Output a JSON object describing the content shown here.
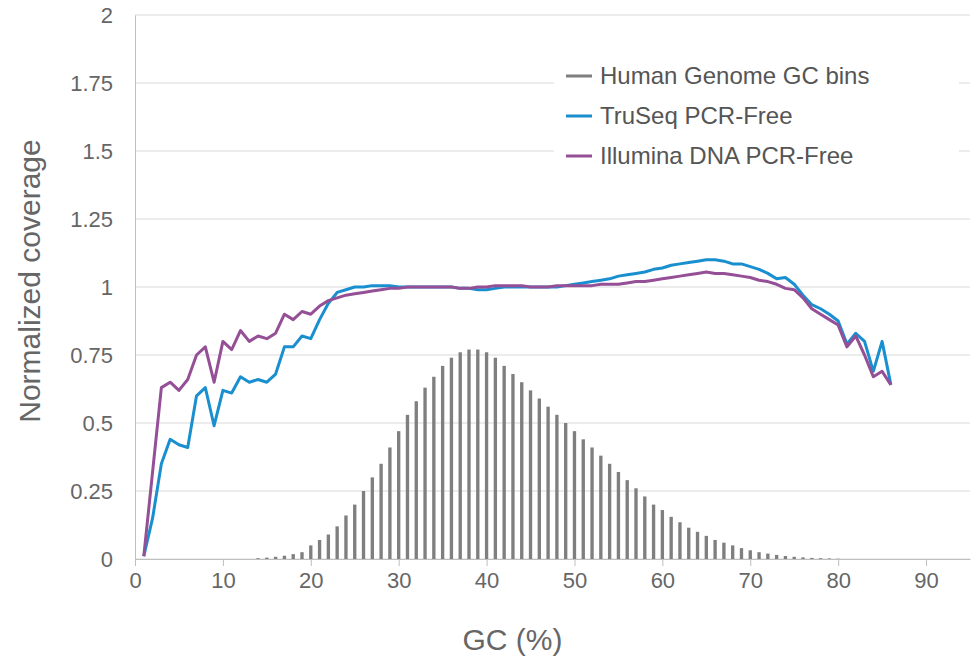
{
  "chart_data": {
    "type": "line",
    "xlabel": "GC (%)",
    "ylabel": "Normalized coverage",
    "xlim": [
      0,
      95
    ],
    "ylim": [
      0,
      2
    ],
    "xticks": [
      0,
      10,
      20,
      30,
      40,
      50,
      60,
      70,
      80,
      90
    ],
    "yticks": [
      0,
      0.25,
      0.5,
      0.75,
      1,
      1.25,
      1.5,
      1.75,
      2
    ],
    "grid": true,
    "legend": "top-right",
    "series": [
      {
        "name": "Human Genome GC bins",
        "type": "bar",
        "color": "#7f7f7f",
        "x": [
          1,
          2,
          3,
          4,
          5,
          6,
          7,
          8,
          9,
          10,
          11,
          12,
          13,
          14,
          15,
          16,
          17,
          18,
          19,
          20,
          21,
          22,
          23,
          24,
          25,
          26,
          27,
          28,
          29,
          30,
          31,
          32,
          33,
          34,
          35,
          36,
          37,
          38,
          39,
          40,
          41,
          42,
          43,
          44,
          45,
          46,
          47,
          48,
          49,
          50,
          51,
          52,
          53,
          54,
          55,
          56,
          57,
          58,
          59,
          60,
          61,
          62,
          63,
          64,
          65,
          66,
          67,
          68,
          69,
          70,
          71,
          72,
          73,
          74,
          75,
          76,
          77,
          78,
          79,
          80,
          81,
          82,
          83,
          84,
          85,
          86,
          87,
          88,
          89,
          90,
          91,
          92,
          93,
          94
        ],
        "values": [
          0,
          0,
          0,
          0,
          0,
          0,
          0,
          0,
          0,
          0,
          0,
          0,
          0,
          0.003,
          0.005,
          0.008,
          0.012,
          0.018,
          0.025,
          0.05,
          0.07,
          0.09,
          0.12,
          0.16,
          0.2,
          0.25,
          0.3,
          0.35,
          0.41,
          0.47,
          0.53,
          0.58,
          0.63,
          0.67,
          0.71,
          0.74,
          0.76,
          0.77,
          0.77,
          0.76,
          0.74,
          0.71,
          0.68,
          0.65,
          0.62,
          0.59,
          0.56,
          0.53,
          0.5,
          0.47,
          0.44,
          0.41,
          0.38,
          0.35,
          0.32,
          0.29,
          0.26,
          0.23,
          0.2,
          0.18,
          0.155,
          0.135,
          0.115,
          0.1,
          0.085,
          0.07,
          0.06,
          0.05,
          0.04,
          0.032,
          0.025,
          0.02,
          0.015,
          0.011,
          0.008,
          0.006,
          0.004,
          0.003,
          0.002,
          0.001,
          0,
          0,
          0,
          0,
          0,
          0,
          0,
          0,
          0,
          0,
          0,
          0,
          0,
          0
        ]
      },
      {
        "name": "TruSeq PCR-Free",
        "color": "#1a8fcf",
        "x": [
          1,
          2,
          3,
          4,
          5,
          6,
          7,
          8,
          9,
          10,
          11,
          12,
          13,
          14,
          15,
          16,
          17,
          18,
          19,
          20,
          21,
          22,
          23,
          24,
          25,
          26,
          27,
          28,
          29,
          30,
          31,
          32,
          33,
          34,
          35,
          36,
          37,
          38,
          39,
          40,
          41,
          42,
          43,
          44,
          45,
          46,
          47,
          48,
          49,
          50,
          51,
          52,
          53,
          54,
          55,
          56,
          57,
          58,
          59,
          60,
          61,
          62,
          63,
          64,
          65,
          66,
          67,
          68,
          69,
          70,
          71,
          72,
          73,
          74,
          75,
          76,
          77,
          78,
          79,
          80,
          81,
          82,
          83,
          84,
          85,
          86
        ],
        "values": [
          0.01,
          0.15,
          0.35,
          0.44,
          0.42,
          0.41,
          0.6,
          0.63,
          0.49,
          0.62,
          0.61,
          0.67,
          0.65,
          0.66,
          0.65,
          0.68,
          0.78,
          0.78,
          0.82,
          0.81,
          0.88,
          0.94,
          0.98,
          0.99,
          1,
          1,
          1.005,
          1.005,
          1.005,
          1,
          1,
          1,
          1,
          1,
          1,
          1,
          0.995,
          0.995,
          0.99,
          0.99,
          0.995,
          1,
          1,
          1,
          1,
          1,
          1,
          1,
          1.005,
          1.01,
          1.015,
          1.02,
          1.025,
          1.03,
          1.04,
          1.045,
          1.05,
          1.055,
          1.065,
          1.07,
          1.08,
          1.085,
          1.09,
          1.095,
          1.1,
          1.1,
          1.095,
          1.085,
          1.085,
          1.075,
          1.065,
          1.05,
          1.03,
          1.035,
          1.01,
          0.97,
          0.935,
          0.92,
          0.9,
          0.875,
          0.79,
          0.83,
          0.8,
          0.69,
          0.8,
          0.64
        ]
      },
      {
        "name": "Illumina DNA PCR-Free",
        "color": "#954f97",
        "x": [
          1,
          2,
          3,
          4,
          5,
          6,
          7,
          8,
          9,
          10,
          11,
          12,
          13,
          14,
          15,
          16,
          17,
          18,
          19,
          20,
          21,
          22,
          23,
          24,
          25,
          26,
          27,
          28,
          29,
          30,
          31,
          32,
          33,
          34,
          35,
          36,
          37,
          38,
          39,
          40,
          41,
          42,
          43,
          44,
          45,
          46,
          47,
          48,
          49,
          50,
          51,
          52,
          53,
          54,
          55,
          56,
          57,
          58,
          59,
          60,
          61,
          62,
          63,
          64,
          65,
          66,
          67,
          68,
          69,
          70,
          71,
          72,
          73,
          74,
          75,
          76,
          77,
          78,
          79,
          80,
          81,
          82,
          83,
          84,
          85,
          86
        ],
        "values": [
          0.01,
          0.32,
          0.63,
          0.65,
          0.62,
          0.66,
          0.75,
          0.78,
          0.65,
          0.8,
          0.77,
          0.84,
          0.8,
          0.82,
          0.81,
          0.83,
          0.9,
          0.88,
          0.91,
          0.9,
          0.93,
          0.95,
          0.96,
          0.97,
          0.975,
          0.98,
          0.985,
          0.99,
          0.995,
          0.995,
          1,
          1,
          1,
          1,
          1,
          1,
          0.995,
          0.995,
          1,
          1,
          1.005,
          1.005,
          1.005,
          1.005,
          1,
          1,
          1,
          1.005,
          1.005,
          1.005,
          1.005,
          1.005,
          1.01,
          1.01,
          1.01,
          1.015,
          1.02,
          1.02,
          1.025,
          1.03,
          1.035,
          1.04,
          1.045,
          1.05,
          1.055,
          1.05,
          1.05,
          1.045,
          1.04,
          1.035,
          1.025,
          1.02,
          1.01,
          0.995,
          0.99,
          0.96,
          0.92,
          0.9,
          0.88,
          0.86,
          0.78,
          0.82,
          0.75,
          0.67,
          0.69,
          0.64
        ]
      }
    ]
  }
}
